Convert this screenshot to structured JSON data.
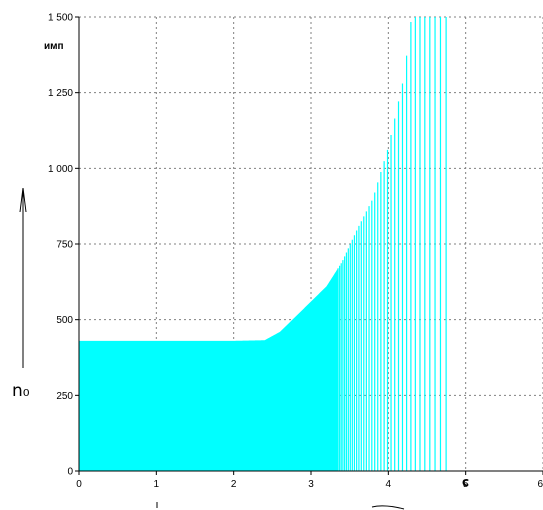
{
  "chart_data": {
    "type": "area",
    "fill_color": "#00ffff",
    "xlim": [
      0,
      6
    ],
    "ylim": [
      0,
      1500
    ],
    "x_ticks": [
      "0",
      "1",
      "2",
      "3",
      "4",
      "5",
      "6"
    ],
    "y_ticks": [
      "0",
      "250",
      "500",
      "750",
      "1 000",
      "1 250",
      "1 500"
    ],
    "y_tick_values": [
      0,
      250,
      500,
      750,
      1000,
      1250,
      1500
    ],
    "y_unit_label": "имп",
    "y_symbol": "n₀",
    "x_unit_label": "c",
    "grid": true,
    "series": [
      {
        "x": [
          0,
          0.5,
          1,
          1.5,
          2,
          2.4,
          2.6,
          2.8,
          3.0,
          3.2,
          3.4,
          3.6,
          3.8,
          4.0,
          4.2,
          4.3,
          4.38,
          4.8
        ],
        "y": [
          430,
          430,
          430,
          430,
          430,
          432,
          460,
          510,
          560,
          610,
          690,
          800,
          900,
          1070,
          1300,
          1500,
          1500,
          1500
        ],
        "solid_until_x": 3.35,
        "spike_region": [
          3.35,
          4.8
        ]
      }
    ]
  }
}
